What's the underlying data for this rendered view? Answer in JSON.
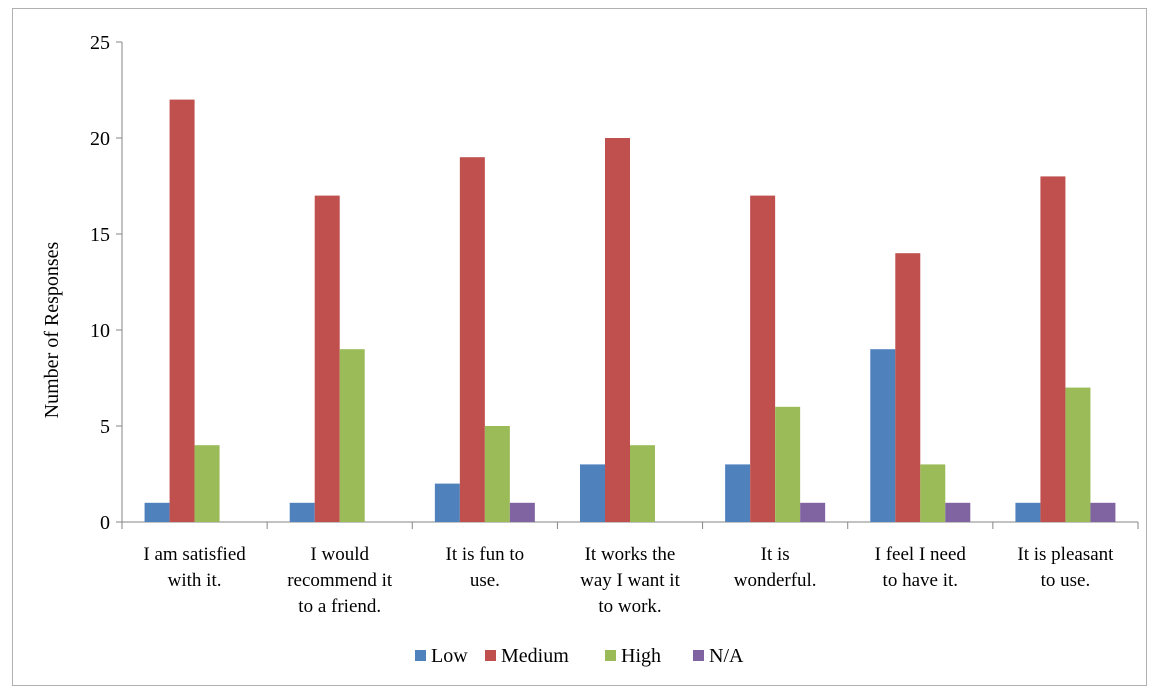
{
  "chart_data": {
    "type": "bar",
    "ylabel": "Number of Responses",
    "ylim": [
      0,
      25
    ],
    "yticks": [
      0,
      5,
      10,
      15,
      20,
      25
    ],
    "grid": false,
    "legend_position": "bottom",
    "categories": [
      [
        "I am satisfied",
        "with it."
      ],
      [
        "I would",
        "recommend it",
        "to a friend."
      ],
      [
        "It is fun to",
        "use."
      ],
      [
        "It works the",
        "way I want it",
        "to work."
      ],
      [
        "It is",
        "wonderful."
      ],
      [
        "I feel I need",
        "to have it."
      ],
      [
        "It is pleasant",
        "to use."
      ]
    ],
    "series": [
      {
        "name": "Low",
        "color": "#4f81bd",
        "values": [
          1,
          1,
          2,
          3,
          3,
          9,
          1
        ]
      },
      {
        "name": "Medium",
        "color": "#c0504d",
        "values": [
          22,
          17,
          19,
          20,
          17,
          14,
          18
        ]
      },
      {
        "name": "High",
        "color": "#9bbb59",
        "values": [
          4,
          9,
          5,
          4,
          6,
          3,
          7
        ]
      },
      {
        "name": "N/A",
        "color": "#8064a2",
        "values": [
          0,
          0,
          1,
          0,
          1,
          1,
          1
        ]
      }
    ]
  }
}
